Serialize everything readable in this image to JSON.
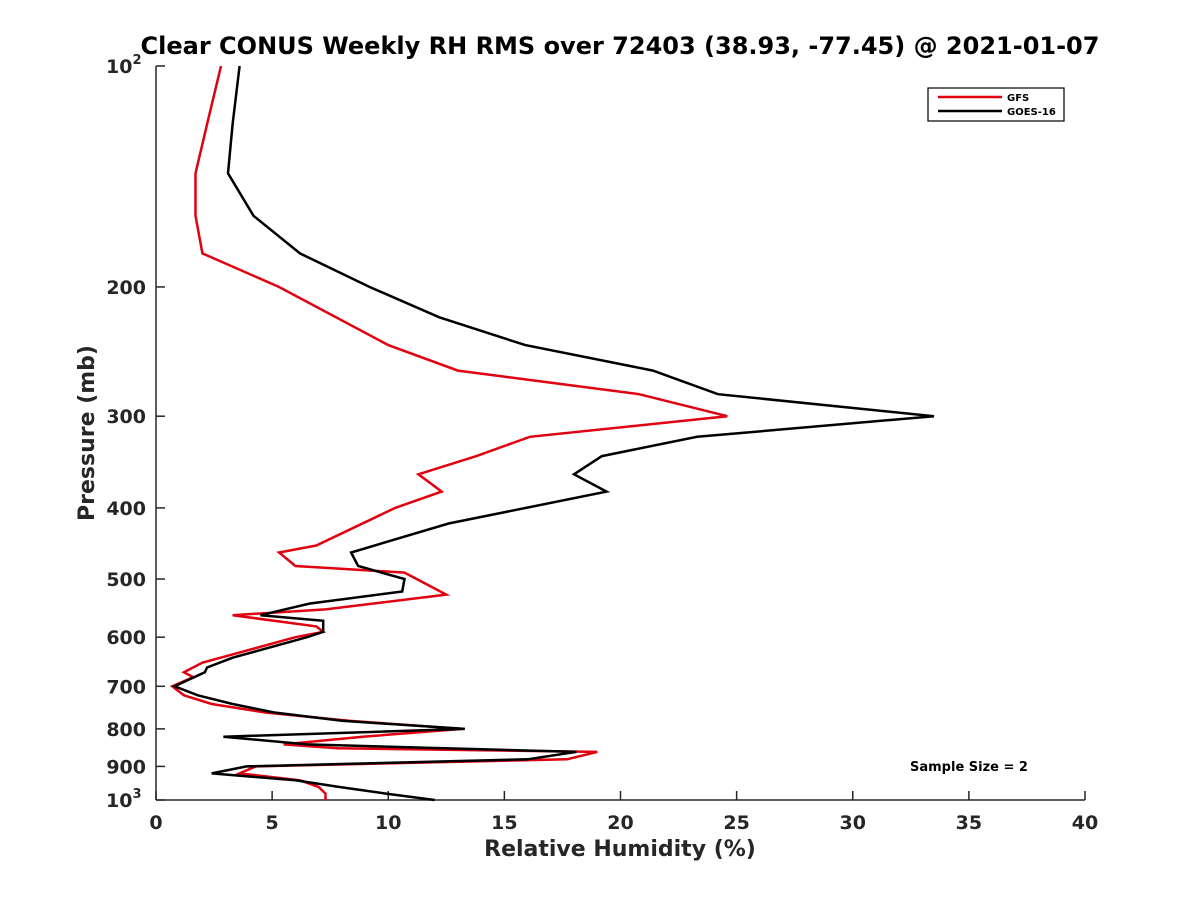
{
  "chart_data": {
    "type": "line",
    "title": "Clear CONUS Weekly RH RMS over 72403 (38.93, -77.45) @ 2021-01-07",
    "xlabel": "Relative Humidity (%)",
    "ylabel": "Pressure (mb)",
    "xlim": [
      0,
      40
    ],
    "ylim": [
      100,
      1000
    ],
    "yscale": "log",
    "y_reversed": true,
    "grid": false,
    "legend_position": "top-right",
    "x_ticks": [
      {
        "value": 0,
        "label": "0"
      },
      {
        "value": 5,
        "label": "5"
      },
      {
        "value": 10,
        "label": "10"
      },
      {
        "value": 15,
        "label": "15"
      },
      {
        "value": 20,
        "label": "20"
      },
      {
        "value": 25,
        "label": "25"
      },
      {
        "value": 30,
        "label": "30"
      },
      {
        "value": 35,
        "label": "35"
      },
      {
        "value": 40,
        "label": "40"
      }
    ],
    "y_ticks": [
      {
        "value": 100,
        "base": "10",
        "exp": "2"
      },
      {
        "value": 200,
        "base": "200",
        "exp": ""
      },
      {
        "value": 300,
        "base": "300",
        "exp": ""
      },
      {
        "value": 400,
        "base": "400",
        "exp": ""
      },
      {
        "value": 500,
        "base": "500",
        "exp": ""
      },
      {
        "value": 600,
        "base": "600",
        "exp": ""
      },
      {
        "value": 700,
        "base": "700",
        "exp": ""
      },
      {
        "value": 800,
        "base": "800",
        "exp": ""
      },
      {
        "value": 900,
        "base": "900",
        "exp": ""
      },
      {
        "value": 1000,
        "base": "10",
        "exp": "3"
      }
    ],
    "annotation": "Sample Size = 2",
    "series": [
      {
        "name": "GFS",
        "color": "#e0000f",
        "points": [
          [
            2.8,
            100
          ],
          [
            2.2,
            120
          ],
          [
            1.7,
            140
          ],
          [
            1.7,
            160
          ],
          [
            2.0,
            180
          ],
          [
            5.3,
            200
          ],
          [
            10.0,
            240
          ],
          [
            13.0,
            260
          ],
          [
            20.8,
            280
          ],
          [
            24.6,
            300
          ],
          [
            16.1,
            320
          ],
          [
            13.8,
            340
          ],
          [
            11.3,
            360
          ],
          [
            12.3,
            380
          ],
          [
            10.3,
            400
          ],
          [
            6.9,
            450
          ],
          [
            5.3,
            460
          ],
          [
            6.0,
            480
          ],
          [
            10.7,
            490
          ],
          [
            12.5,
            525
          ],
          [
            7.3,
            550
          ],
          [
            3.3,
            560
          ],
          [
            6.9,
            580
          ],
          [
            7.2,
            590
          ],
          [
            6.0,
            600
          ],
          [
            2.0,
            650
          ],
          [
            1.2,
            670
          ],
          [
            1.6,
            680
          ],
          [
            0.7,
            700
          ],
          [
            1.2,
            720
          ],
          [
            2.4,
            740
          ],
          [
            4.7,
            760
          ],
          [
            8.3,
            780
          ],
          [
            13.2,
            800
          ],
          [
            8.9,
            820
          ],
          [
            5.5,
            840
          ],
          [
            7.8,
            850
          ],
          [
            19.0,
            860
          ],
          [
            17.7,
            880
          ],
          [
            4.3,
            900
          ],
          [
            3.6,
            920
          ],
          [
            6.2,
            940
          ],
          [
            7.0,
            960
          ],
          [
            7.3,
            980
          ],
          [
            7.3,
            1000
          ]
        ]
      },
      {
        "name": "GOES-16",
        "color": "#000000",
        "points": [
          [
            3.6,
            100
          ],
          [
            3.3,
            120
          ],
          [
            3.1,
            140
          ],
          [
            4.2,
            160
          ],
          [
            6.2,
            180
          ],
          [
            9.2,
            200
          ],
          [
            12.2,
            220
          ],
          [
            15.9,
            240
          ],
          [
            21.4,
            260
          ],
          [
            24.2,
            280
          ],
          [
            33.5,
            300
          ],
          [
            23.3,
            320
          ],
          [
            19.2,
            340
          ],
          [
            18.0,
            360
          ],
          [
            19.4,
            380
          ],
          [
            12.6,
            420
          ],
          [
            8.4,
            460
          ],
          [
            8.7,
            480
          ],
          [
            10.7,
            500
          ],
          [
            10.6,
            520
          ],
          [
            6.6,
            540
          ],
          [
            4.5,
            560
          ],
          [
            7.2,
            570
          ],
          [
            7.2,
            590
          ],
          [
            6.5,
            600
          ],
          [
            3.3,
            640
          ],
          [
            2.2,
            660
          ],
          [
            2.1,
            670
          ],
          [
            0.8,
            700
          ],
          [
            1.8,
            720
          ],
          [
            3.3,
            740
          ],
          [
            5.1,
            760
          ],
          [
            8.0,
            780
          ],
          [
            13.3,
            800
          ],
          [
            2.9,
            820
          ],
          [
            6.5,
            840
          ],
          [
            18.1,
            860
          ],
          [
            16.0,
            880
          ],
          [
            3.9,
            900
          ],
          [
            2.4,
            920
          ],
          [
            6.0,
            940
          ],
          [
            7.9,
            960
          ],
          [
            9.9,
            980
          ],
          [
            12.0,
            1000
          ]
        ]
      }
    ]
  }
}
